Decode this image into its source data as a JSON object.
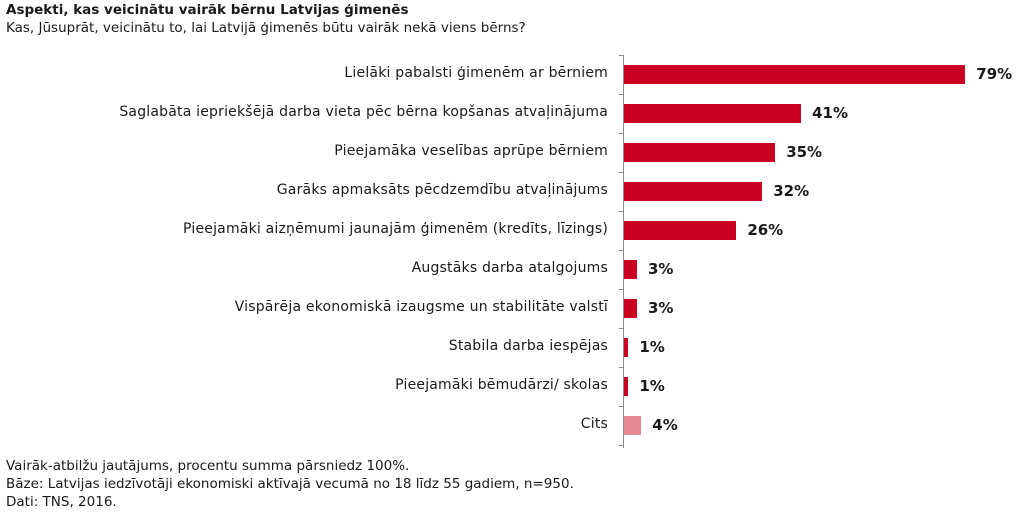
{
  "header": {
    "title": "Aspekti, kas veicinātu vairāk bērnu Latvijas ģimenēs",
    "subtitle": "Kas, Jūsuprāt, veicinātu to, lai Latvijā ģimenēs būtu vairāk nekā viens bērns?"
  },
  "colors": {
    "primary_bar": "#C9001F",
    "other_bar": "#E58A94",
    "axis": "#8a8a8a"
  },
  "chart_data": {
    "type": "bar",
    "orientation": "horizontal",
    "title": "Aspekti, kas veicinātu vairāk bērnu Latvijas ģimenēs",
    "subtitle": "Kas, Jūsuprāt, veicinātu to, lai Latvijā ģimenēs būtu vairāk nekā viens bērns?",
    "xlabel": "",
    "ylabel": "",
    "unit": "%",
    "grid": false,
    "legend": null,
    "categories": [
      "Lielāki pabalsti ģimenēm ar bērniem",
      "Saglabāta iepriekšējā darba vieta pēc bērna kopšanas atvaļinājuma",
      "Pieejamāka veselības aprūpe bērniem",
      "Garāks apmaksāts pēcdzemdību atvaļinājums",
      "Pieejamāki aizņēmumi jaunajām ģimenēm (kredīts, līzings)",
      "Augstāks darba atalgojums",
      "Vispārēja ekonomiskā izaugsme un stabilitāte valstī",
      "Stabila darba iespējas",
      "Pieejamāki bēmudārzi/ skolas",
      "Cits"
    ],
    "values": [
      79,
      41,
      35,
      32,
      26,
      3,
      3,
      1,
      1,
      4
    ],
    "value_labels": [
      "79%",
      "41%",
      "35%",
      "32%",
      "26%",
      "3%",
      "3%",
      "1%",
      "1%",
      "4%"
    ],
    "bar_colors": [
      "#C9001F",
      "#C9001F",
      "#C9001F",
      "#C9001F",
      "#C9001F",
      "#C9001F",
      "#C9001F",
      "#C9001F",
      "#C9001F",
      "#E58A94"
    ]
  },
  "footnotes": {
    "line1": "Vairāk-atbilžu jautājums, procentu summa pārsniedz 100%.",
    "line2": "Bāze: Latvijas iedzīvotāji ekonomiski aktīvajā vecumā no 18 līdz 55 gadiem, n=950.",
    "line3": "Dati: TNS, 2016."
  }
}
